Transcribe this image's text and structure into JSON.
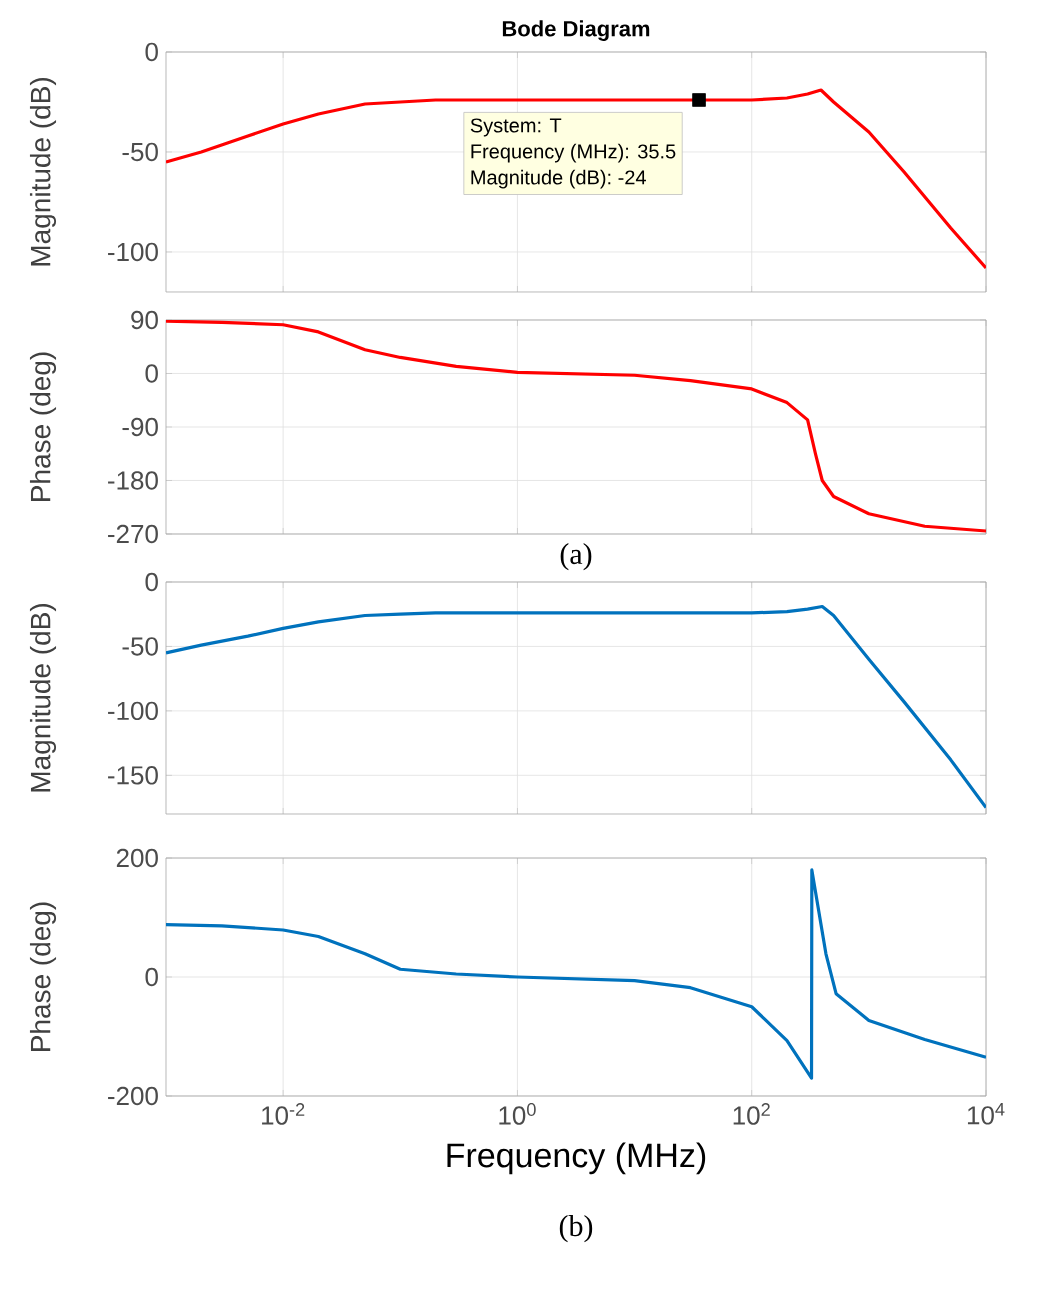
{
  "chart_data": [
    {
      "type": "line",
      "title": "Bode Diagram",
      "ylabel": "Magnitude (dB)",
      "log": "x",
      "grid": true,
      "tick_labels": "y",
      "xlim": [
        0.001,
        10000
      ],
      "xticks": [
        {
          "value": 0.01,
          "label": null
        },
        {
          "value": 1,
          "label": null
        },
        {
          "value": 100,
          "label": null
        },
        {
          "value": 10000,
          "label": null
        }
      ],
      "ylim": [
        -120,
        0
      ],
      "yticks": [
        0,
        -50,
        -100
      ],
      "series": [
        {
          "color": "#ff0000",
          "x": [
            0.001,
            0.002,
            0.005,
            0.01,
            0.02,
            0.05,
            0.1,
            0.2,
            0.5,
            1,
            10,
            35.5,
            100,
            200,
            300,
            390,
            500,
            1000,
            2000,
            5000,
            10000
          ],
          "values": [
            -55,
            -50,
            -42,
            -36,
            -31,
            -26,
            -25,
            -24,
            -24,
            -24,
            -24,
            -24,
            -24,
            -23,
            -21,
            -19,
            -25,
            -40,
            -60,
            -88,
            -108
          ]
        },
        {
          "type": "scatter",
          "marker": "square",
          "color": "#000000",
          "x": [
            35.5
          ],
          "values": [
            -24
          ]
        }
      ],
      "annotations": [
        "System: T",
        "Frequency (MHz): 35.5",
        "Magnitude (dB): -24"
      ]
    },
    {
      "type": "line",
      "ylabel": "Phase (deg)",
      "log": "x",
      "grid": true,
      "tick_labels": "y",
      "xlim": [
        0.001,
        10000
      ],
      "xticks": [
        {
          "value": 0.01,
          "label": null
        },
        {
          "value": 1,
          "label": null
        },
        {
          "value": 100,
          "label": null
        },
        {
          "value": 10000,
          "label": null
        }
      ],
      "ylim": [
        -270,
        90
      ],
      "yticks": [
        90,
        0,
        -90,
        -180,
        -270
      ],
      "series": [
        {
          "color": "#ff0000",
          "x": [
            0.001,
            0.003,
            0.01,
            0.02,
            0.05,
            0.1,
            0.3,
            1,
            10,
            30,
            100,
            200,
            300,
            350,
            400,
            500,
            1000,
            3000,
            10000
          ],
          "values": [
            88,
            86,
            82,
            70,
            40,
            27,
            12,
            2,
            -3,
            -12,
            -26,
            -49,
            -78,
            -135,
            -180,
            -207,
            -236,
            -257,
            -265
          ]
        }
      ],
      "annotations": [
        "(a)"
      ]
    },
    {
      "type": "line",
      "ylabel": "Magnitude (dB)",
      "log": "x",
      "grid": true,
      "tick_labels": "y",
      "xlim": [
        0.001,
        10000
      ],
      "xticks": [
        {
          "value": 0.01,
          "label": null
        },
        {
          "value": 1,
          "label": null
        },
        {
          "value": 100,
          "label": null
        },
        {
          "value": 10000,
          "label": null
        }
      ],
      "ylim": [
        -180,
        0
      ],
      "yticks": [
        0,
        -50,
        -100,
        -150
      ],
      "series": [
        {
          "color": "#0072bd",
          "x": [
            0.001,
            0.002,
            0.005,
            0.01,
            0.02,
            0.05,
            0.1,
            0.2,
            1,
            10,
            100,
            200,
            300,
            400,
            500,
            1000,
            2000,
            5000,
            10000
          ],
          "values": [
            -55,
            -49,
            -42,
            -36,
            -31,
            -26,
            -25,
            -24,
            -24,
            -24,
            -24,
            -23,
            -21,
            -19,
            -26,
            -60,
            -93,
            -138,
            -175
          ]
        }
      ]
    },
    {
      "type": "line",
      "ylabel": "Phase (deg)",
      "xlabel": "Frequency (MHz)",
      "log": "x",
      "grid": true,
      "xlim": [
        0.001,
        10000
      ],
      "xticks": [
        {
          "value": 0.01,
          "label": "10$^{-2}$"
        },
        {
          "value": 1,
          "label": "10$^{0}$"
        },
        {
          "value": 100,
          "label": "10$^{2}$"
        },
        {
          "value": 10000,
          "label": "10$^{4}$"
        }
      ],
      "ylim": [
        -200,
        200
      ],
      "yticks": [
        200,
        0,
        -200
      ],
      "series": [
        {
          "color": "#0072bd",
          "x": [
            0.001,
            0.003,
            0.01,
            0.02,
            0.05,
            0.1,
            0.3,
            1,
            10,
            30,
            100,
            200,
            300,
            324,
            326,
            430,
            525,
            1000,
            3000,
            10000
          ],
          "values": [
            88,
            86,
            79,
            68,
            39,
            13,
            5,
            0,
            -6,
            -18,
            -50,
            -107,
            -160,
            -170,
            180,
            39,
            -28,
            -73,
            -105,
            -135
          ]
        }
      ],
      "annotations": [
        "(b)"
      ]
    }
  ]
}
